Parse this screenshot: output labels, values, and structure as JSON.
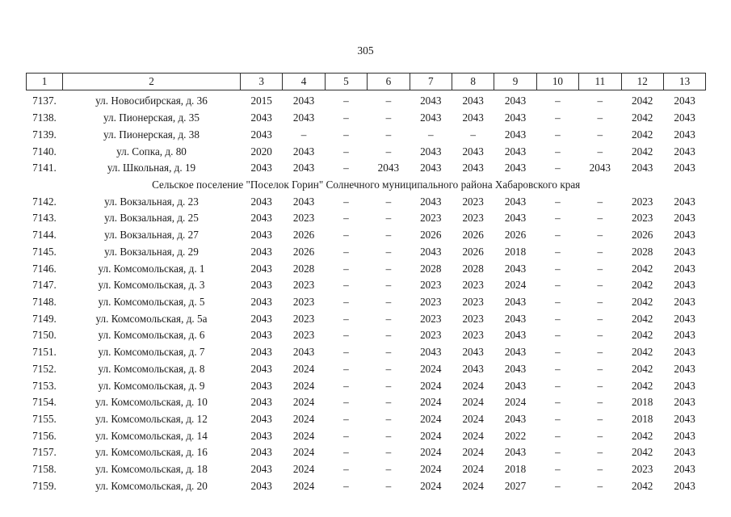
{
  "page": {
    "number": "305"
  },
  "table": {
    "header_columns": [
      "1",
      "2",
      "3",
      "4",
      "5",
      "6",
      "7",
      "8",
      "9",
      "10",
      "11",
      "12",
      "13"
    ],
    "rows": [
      {
        "type": "data",
        "num": "7137.",
        "address": "ул. Новосибирская, д. 36",
        "values": [
          "2015",
          "2043",
          "–",
          "–",
          "2043",
          "2043",
          "2043",
          "–",
          "–",
          "2042",
          "2043"
        ]
      },
      {
        "type": "data",
        "num": "7138.",
        "address": "ул. Пионерская, д. 35",
        "values": [
          "2043",
          "2043",
          "–",
          "–",
          "2043",
          "2043",
          "2043",
          "–",
          "–",
          "2042",
          "2043"
        ]
      },
      {
        "type": "data",
        "num": "7139.",
        "address": "ул. Пионерская, д. 38",
        "values": [
          "2043",
          "–",
          "–",
          "–",
          "–",
          "–",
          "2043",
          "–",
          "–",
          "2042",
          "2043"
        ]
      },
      {
        "type": "data",
        "num": "7140.",
        "address": "ул. Сопка, д. 80",
        "values": [
          "2020",
          "2043",
          "–",
          "–",
          "2043",
          "2043",
          "2043",
          "–",
          "–",
          "2042",
          "2043"
        ]
      },
      {
        "type": "data",
        "num": "7141.",
        "address": "ул. Школьная, д. 19",
        "values": [
          "2043",
          "2043",
          "–",
          "2043",
          "2043",
          "2043",
          "2043",
          "–",
          "2043",
          "2043",
          "2043"
        ]
      },
      {
        "type": "section",
        "label": "Сельское поселение \"Поселок Горин\" Солнечного муниципального района Хабаровского края"
      },
      {
        "type": "data",
        "num": "7142.",
        "address": "ул. Вокзальная, д. 23",
        "values": [
          "2043",
          "2043",
          "–",
          "–",
          "2043",
          "2023",
          "2043",
          "–",
          "–",
          "2023",
          "2043"
        ]
      },
      {
        "type": "data",
        "num": "7143.",
        "address": "ул. Вокзальная, д. 25",
        "values": [
          "2043",
          "2023",
          "–",
          "–",
          "2023",
          "2023",
          "2043",
          "–",
          "–",
          "2023",
          "2043"
        ]
      },
      {
        "type": "data",
        "num": "7144.",
        "address": "ул. Вокзальная, д. 27",
        "values": [
          "2043",
          "2026",
          "–",
          "–",
          "2026",
          "2026",
          "2026",
          "–",
          "–",
          "2026",
          "2043"
        ]
      },
      {
        "type": "data",
        "num": "7145.",
        "address": "ул. Вокзальная, д. 29",
        "values": [
          "2043",
          "2026",
          "–",
          "–",
          "2043",
          "2026",
          "2018",
          "–",
          "–",
          "2028",
          "2043"
        ]
      },
      {
        "type": "data",
        "num": "7146.",
        "address": "ул. Комсомольская, д. 1",
        "values": [
          "2043",
          "2028",
          "–",
          "–",
          "2028",
          "2028",
          "2043",
          "–",
          "–",
          "2042",
          "2043"
        ]
      },
      {
        "type": "data",
        "num": "7147.",
        "address": "ул. Комсомольская, д. 3",
        "values": [
          "2043",
          "2023",
          "–",
          "–",
          "2023",
          "2023",
          "2024",
          "–",
          "–",
          "2042",
          "2043"
        ]
      },
      {
        "type": "data",
        "num": "7148.",
        "address": "ул. Комсомольская, д. 5",
        "values": [
          "2043",
          "2023",
          "–",
          "–",
          "2023",
          "2023",
          "2043",
          "–",
          "–",
          "2042",
          "2043"
        ]
      },
      {
        "type": "data",
        "num": "7149.",
        "address": "ул. Комсомольская, д. 5а",
        "values": [
          "2043",
          "2023",
          "–",
          "–",
          "2023",
          "2023",
          "2043",
          "–",
          "–",
          "2042",
          "2043"
        ]
      },
      {
        "type": "data",
        "num": "7150.",
        "address": "ул. Комсомольская, д. 6",
        "values": [
          "2043",
          "2023",
          "–",
          "–",
          "2023",
          "2023",
          "2043",
          "–",
          "–",
          "2042",
          "2043"
        ]
      },
      {
        "type": "data",
        "num": "7151.",
        "address": "ул. Комсомольская, д. 7",
        "values": [
          "2043",
          "2043",
          "–",
          "–",
          "2043",
          "2043",
          "2043",
          "–",
          "–",
          "2042",
          "2043"
        ]
      },
      {
        "type": "data",
        "num": "7152.",
        "address": "ул. Комсомольская, д. 8",
        "values": [
          "2043",
          "2024",
          "–",
          "–",
          "2024",
          "2043",
          "2043",
          "–",
          "–",
          "2042",
          "2043"
        ]
      },
      {
        "type": "data",
        "num": "7153.",
        "address": "ул. Комсомольская, д. 9",
        "values": [
          "2043",
          "2024",
          "–",
          "–",
          "2024",
          "2024",
          "2043",
          "–",
          "–",
          "2042",
          "2043"
        ]
      },
      {
        "type": "data",
        "num": "7154.",
        "address": "ул. Комсомольская, д. 10",
        "values": [
          "2043",
          "2024",
          "–",
          "–",
          "2024",
          "2024",
          "2024",
          "–",
          "–",
          "2018",
          "2043"
        ]
      },
      {
        "type": "data",
        "num": "7155.",
        "address": "ул. Комсомольская, д. 12",
        "values": [
          "2043",
          "2024",
          "–",
          "–",
          "2024",
          "2024",
          "2043",
          "–",
          "–",
          "2018",
          "2043"
        ]
      },
      {
        "type": "data",
        "num": "7156.",
        "address": "ул. Комсомольская, д. 14",
        "values": [
          "2043",
          "2024",
          "–",
          "–",
          "2024",
          "2024",
          "2022",
          "–",
          "–",
          "2042",
          "2043"
        ]
      },
      {
        "type": "data",
        "num": "7157.",
        "address": "ул. Комсомольская, д. 16",
        "values": [
          "2043",
          "2024",
          "–",
          "–",
          "2024",
          "2024",
          "2043",
          "–",
          "–",
          "2042",
          "2043"
        ]
      },
      {
        "type": "data",
        "num": "7158.",
        "address": "ул. Комсомольская, д. 18",
        "values": [
          "2043",
          "2024",
          "–",
          "–",
          "2024",
          "2024",
          "2018",
          "–",
          "–",
          "2023",
          "2043"
        ]
      },
      {
        "type": "data",
        "num": "7159.",
        "address": "ул. Комсомольская, д. 20",
        "values": [
          "2043",
          "2024",
          "–",
          "–",
          "2024",
          "2024",
          "2027",
          "–",
          "–",
          "2042",
          "2043"
        ]
      }
    ]
  },
  "colors": {
    "text": "#1c1c1c",
    "border": "#2e2e2e",
    "background": "#ffffff"
  }
}
